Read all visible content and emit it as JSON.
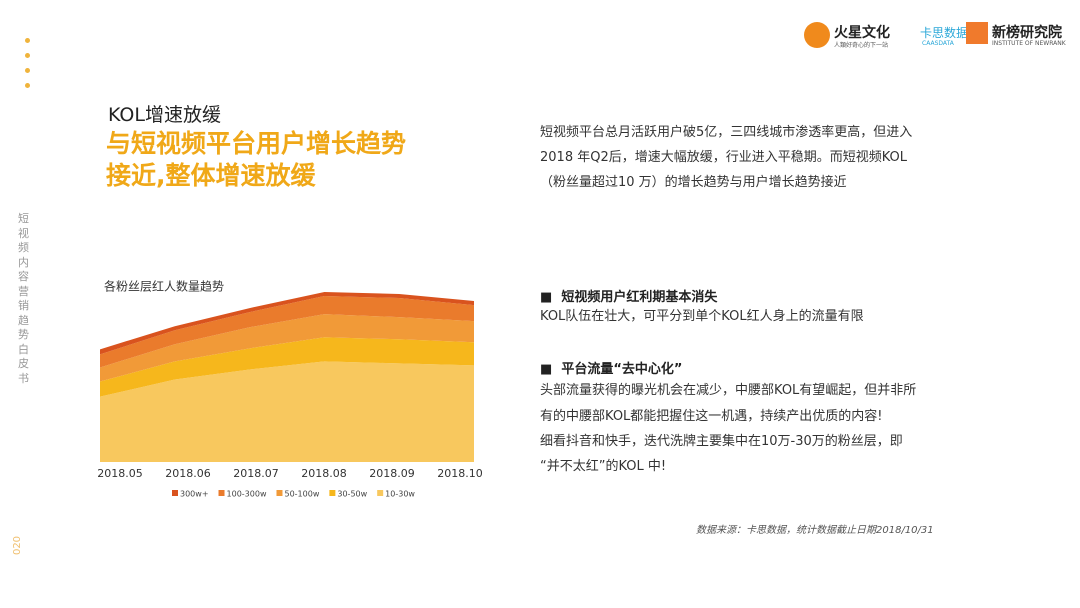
{
  "logos": {
    "brand1": "火星文化",
    "brand1_sub": "人類好奇心的下一站",
    "brand2": "卡思数据",
    "brand2_sub": "CAASDATA",
    "brand3": "新榜研究院",
    "brand3_sub": "INSTITUTE OF NEWRANK"
  },
  "sidebar": {
    "title": "短视频内容营销趋势白皮书",
    "page": "020"
  },
  "headline": {
    "kicker": "KOL增速放缓",
    "lines": [
      "与短视频平台用户增长趋势",
      "接近,整体增速放缓"
    ]
  },
  "intro": [
    "短视频平台总月活跃用户破5亿，三四线城市渗透率更高，但进入",
    "2018  年Q2后，增速大幅放缓，行业进入平稳期。而短视频KOL",
    "（粉丝量超过10 万）的增长趋势与用户增长趋势接近"
  ],
  "points": [
    {
      "heading": "短视频用户红利期基本消失",
      "lines": [
        "KOL队伍在壮大，可平分到单个KOL红人身上的流量有限"
      ]
    },
    {
      "heading": "平台流量“去中心化”",
      "lines": [
        "头部流量获得的曝光机会在减少，中腰部KOL有望崛起，但并非所",
        "有的中腰部KOL都能把握住这一机遇，持续产出优质的内容!",
        "细看抖音和快手，迭代洗牌主要集中在10万-30万的粉丝层，即",
        "“并不太红”的KOL 中!"
      ]
    }
  ],
  "source": "数据来源：卡思数据，统计数据截止日期2018/10/31",
  "chart_data": {
    "type": "stacked_area",
    "title": "各粉丝层红人数量趋势",
    "categories": [
      "2018.05",
      "2018.06",
      "2018.07",
      "2018.08",
      "2018.09",
      "2018.10"
    ],
    "series": [
      {
        "name": "300w+",
        "color": "#d9531e",
        "values": [
          5,
          4,
          4,
          4,
          4,
          4
        ]
      },
      {
        "name": "100-300w",
        "color": "#ea7b2c",
        "values": [
          13,
          14,
          15,
          18,
          19,
          16
        ]
      },
      {
        "name": "50-100w",
        "color": "#f19a38",
        "values": [
          14,
          17,
          21,
          23,
          22,
          21
        ]
      },
      {
        "name": "30-50w",
        "color": "#f6b71c",
        "values": [
          15,
          18,
          21,
          24,
          24,
          23
        ]
      },
      {
        "name": "10-30w",
        "color": "#f8c85e",
        "values": [
          65,
          82,
          92,
          100,
          98,
          96
        ]
      }
    ]
  }
}
